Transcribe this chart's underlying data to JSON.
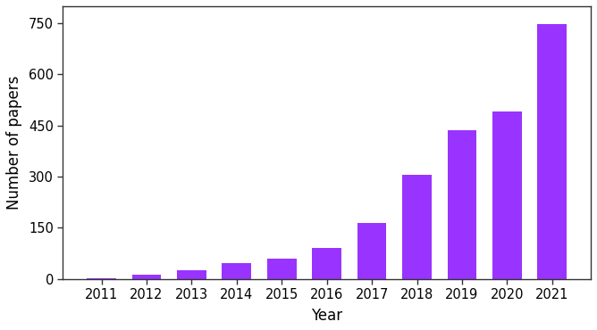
{
  "years": [
    2011,
    2012,
    2013,
    2014,
    2015,
    2016,
    2017,
    2018,
    2019,
    2020,
    2021
  ],
  "values": [
    3,
    12,
    25,
    45,
    60,
    90,
    165,
    305,
    435,
    490,
    748
  ],
  "bar_color": "#9933FF",
  "xlabel": "Year",
  "ylabel": "Number of papers",
  "ylim": [
    0,
    800
  ],
  "yticks": [
    0,
    150,
    300,
    450,
    600,
    750
  ],
  "xlabel_fontsize": 12,
  "ylabel_fontsize": 12,
  "tick_fontsize": 10.5,
  "bar_width": 0.65,
  "background_color": "#ffffff",
  "spine_color": "#333333",
  "figsize": [
    6.68,
    3.7
  ],
  "dpi": 100
}
